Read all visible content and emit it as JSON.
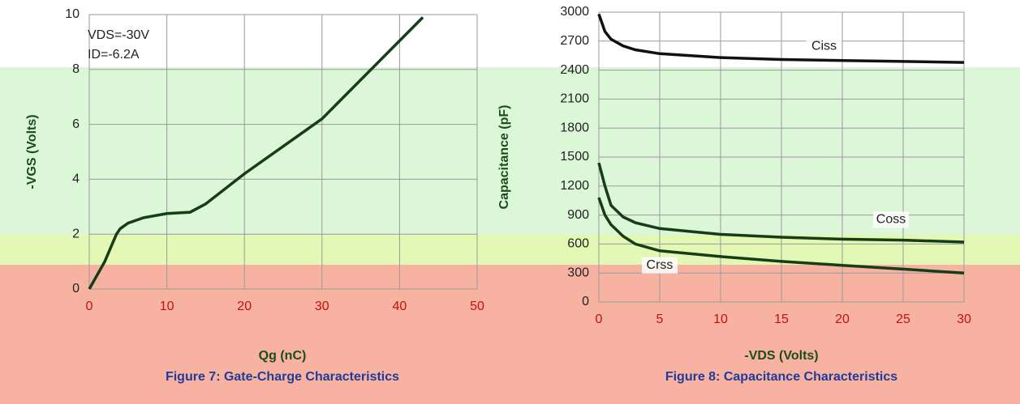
{
  "chart_data": [
    {
      "type": "line",
      "x": [
        0,
        2,
        3.5,
        4,
        5,
        7,
        10,
        13,
        15,
        20,
        30,
        43
      ],
      "values": [
        0,
        1,
        2,
        2.2,
        2.4,
        2.6,
        2.75,
        2.8,
        3.1,
        4.2,
        6.2,
        9.9
      ],
      "color": "#163d16",
      "xlim": [
        0,
        50
      ],
      "xticks": [
        0,
        10,
        20,
        30,
        40,
        50
      ],
      "ylim": [
        0,
        10
      ],
      "yticks": [
        0,
        2,
        4,
        6,
        8,
        10
      ],
      "grid": true,
      "x_label": "Qg (nC)",
      "y_label": "-VGS (Volts)",
      "annotations": [
        "VDS=-30V",
        "ID=-6.2A"
      ],
      "caption": "Figure 7: Gate-Charge Characteristics"
    },
    {
      "type": "line",
      "x": [
        0,
        0.5,
        1,
        2,
        3,
        5,
        10,
        15,
        20,
        25,
        30
      ],
      "series": [
        {
          "name": "Ciss",
          "color": "#111111",
          "values": [
            2980,
            2800,
            2720,
            2650,
            2610,
            2570,
            2530,
            2510,
            2500,
            2490,
            2480
          ]
        },
        {
          "name": "Coss",
          "color": "#163d16",
          "values": [
            1440,
            1200,
            1000,
            880,
            820,
            760,
            700,
            670,
            650,
            640,
            620
          ]
        },
        {
          "name": "Crss",
          "color": "#163d16",
          "values": [
            1080,
            900,
            800,
            680,
            600,
            530,
            470,
            420,
            380,
            340,
            300
          ]
        }
      ],
      "xlim": [
        0,
        30
      ],
      "xticks": [
        0,
        5,
        10,
        15,
        20,
        25,
        30
      ],
      "ylim": [
        0,
        3000
      ],
      "yticks": [
        0,
        300,
        600,
        900,
        1200,
        1500,
        1800,
        2100,
        2400,
        2700,
        3000
      ],
      "grid": true,
      "x_label": "-VDS (Volts)",
      "y_label": "Capacitance (pF)",
      "caption": "Figure 8: Capacitance Characteristics"
    }
  ]
}
